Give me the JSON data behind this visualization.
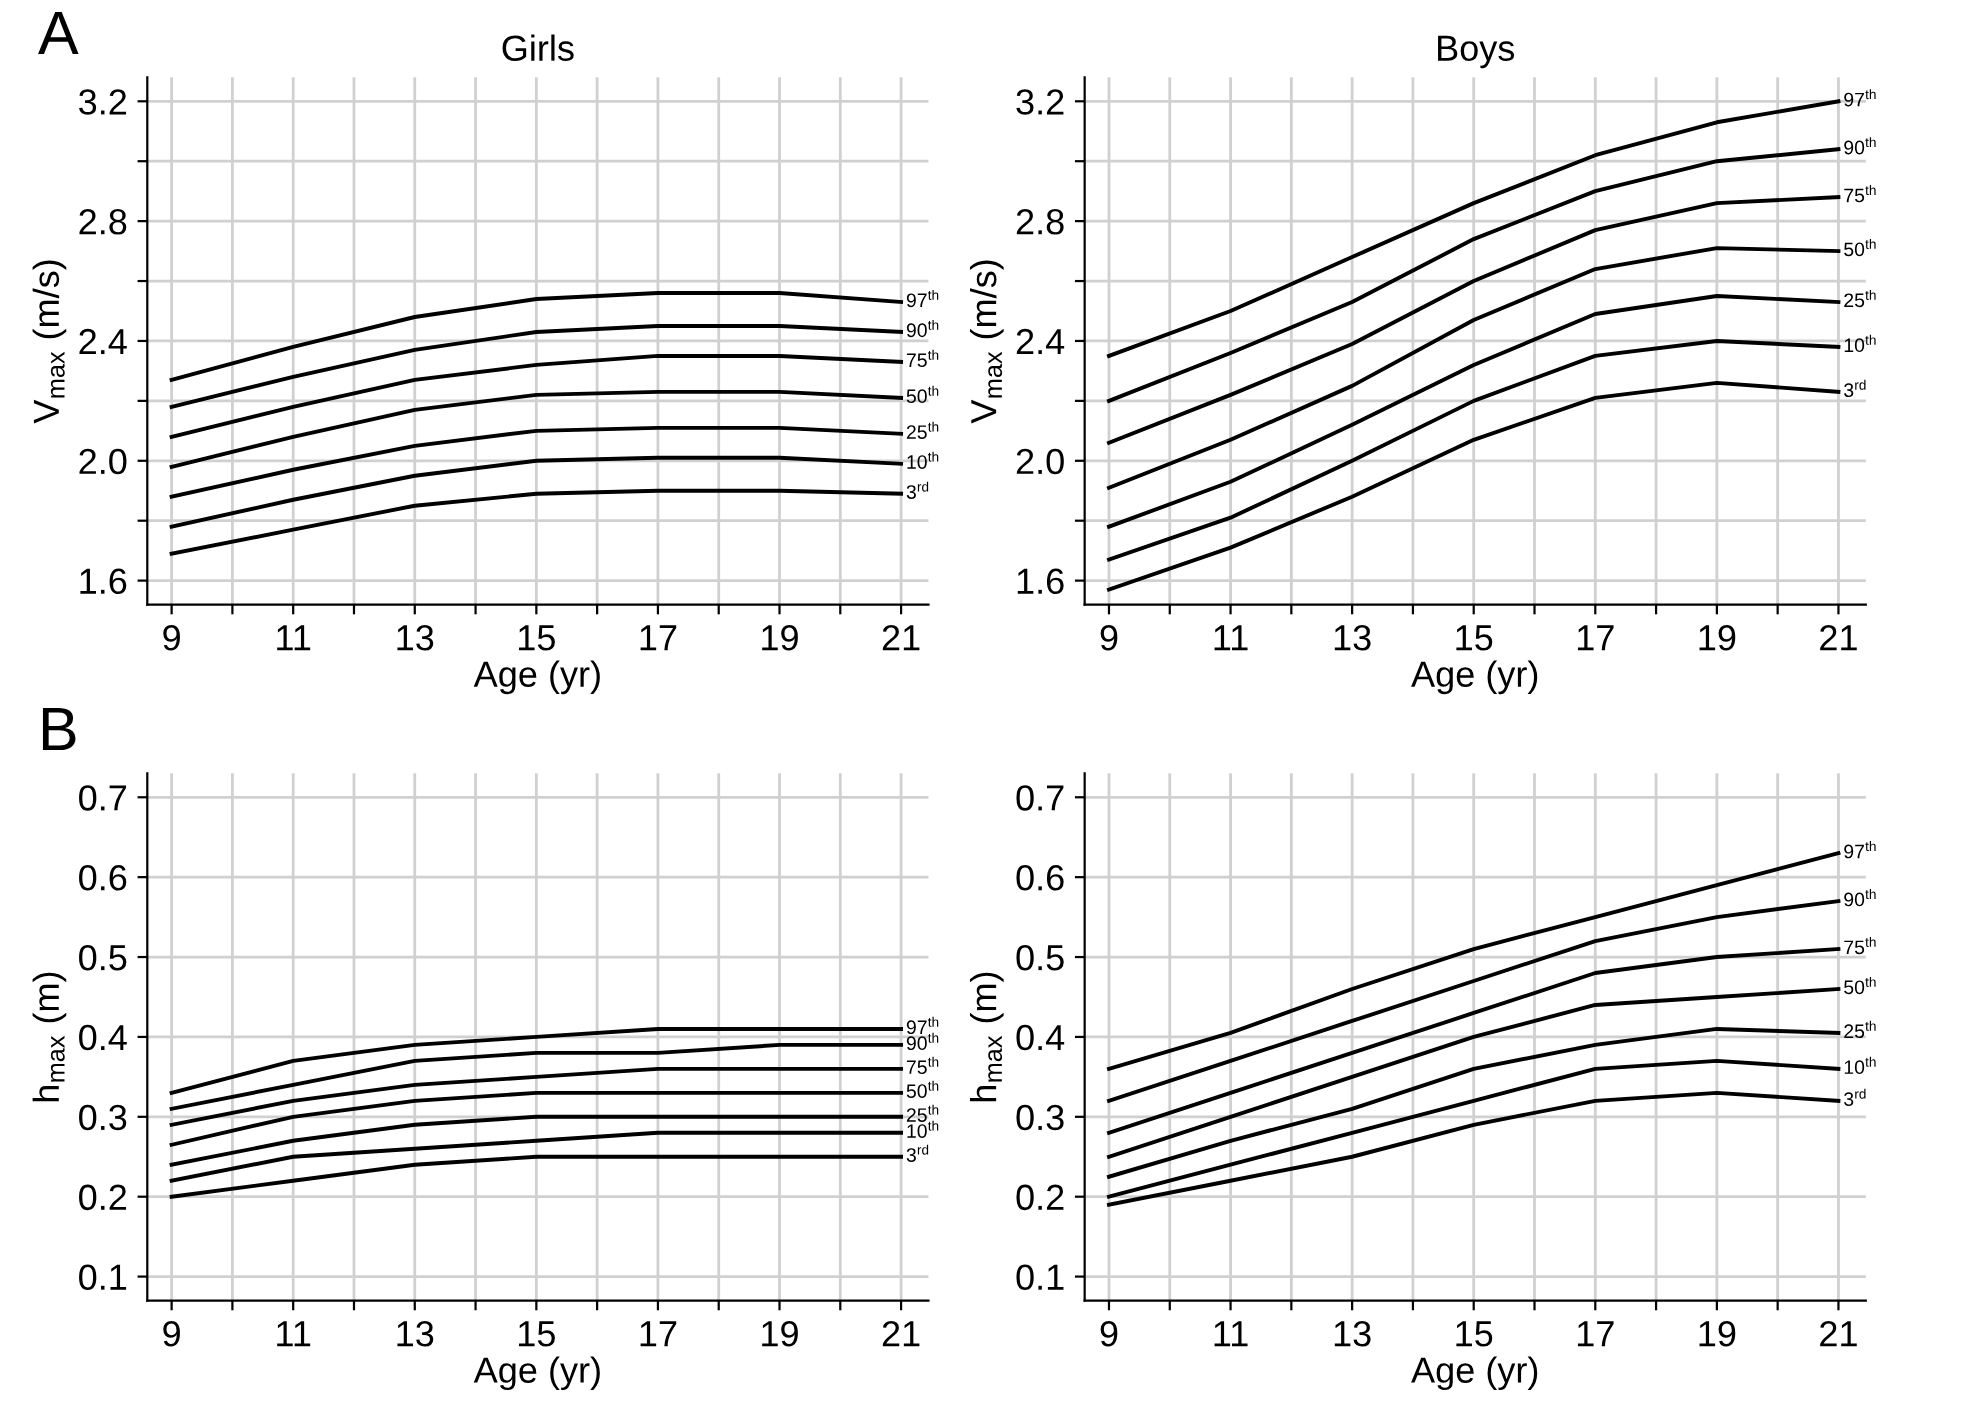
{
  "chart_data": [
    {
      "type": "line",
      "title": "Girls",
      "xlabel": "Age (yr)",
      "ylabel": "V$_{max}$ (m/s)",
      "annotations": [
        "A"
      ],
      "grid": true,
      "x": [
        9,
        11,
        13,
        15,
        17,
        19,
        21
      ],
      "xlim": [
        8.6,
        21.45
      ],
      "ylim": [
        1.52,
        3.28
      ],
      "xticks": [
        9,
        {
          "value": 10,
          "label": null
        },
        11,
        {
          "value": 12,
          "label": null
        },
        13,
        {
          "value": 14,
          "label": null
        },
        15,
        {
          "value": 16,
          "label": null
        },
        17,
        {
          "value": 18,
          "label": null
        },
        19,
        {
          "value": 20,
          "label": null
        },
        21
      ],
      "yticks": [
        1.6,
        {
          "value": 1.8,
          "label": null
        },
        {
          "value": 2.0,
          "label": "2.0"
        },
        {
          "value": 2.2,
          "label": null
        },
        2.4,
        {
          "value": 2.6,
          "label": null
        },
        2.8,
        {
          "value": 3.0,
          "label": null
        },
        3.2
      ],
      "series": [
        {
          "name": "97$^{th}$",
          "color": "#000000",
          "values": [
            2.27,
            2.38,
            2.48,
            2.54,
            2.56,
            2.56,
            2.53
          ]
        },
        {
          "name": "90$^{th}$",
          "color": "#000000",
          "values": [
            2.18,
            2.28,
            2.37,
            2.43,
            2.45,
            2.45,
            2.43
          ]
        },
        {
          "name": "75$^{th}$",
          "color": "#000000",
          "values": [
            2.08,
            2.18,
            2.27,
            2.32,
            2.35,
            2.35,
            2.33
          ]
        },
        {
          "name": "50$^{th}$",
          "color": "#000000",
          "values": [
            1.98,
            2.08,
            2.17,
            2.22,
            2.23,
            2.23,
            2.21
          ]
        },
        {
          "name": "25$^{th}$",
          "color": "#000000",
          "values": [
            1.88,
            1.97,
            2.05,
            2.1,
            2.11,
            2.11,
            2.09
          ]
        },
        {
          "name": "10$^{th}$",
          "color": "#000000",
          "values": [
            1.78,
            1.87,
            1.95,
            2.0,
            2.01,
            2.01,
            1.99
          ]
        },
        {
          "name": "3$^{rd}$",
          "color": "#000000",
          "values": [
            1.69,
            1.77,
            1.85,
            1.89,
            1.9,
            1.9,
            1.89
          ]
        }
      ]
    },
    {
      "type": "line",
      "title": "Boys",
      "xlabel": "Age (yr)",
      "ylabel": "V$_{max}$ (m/s)",
      "grid": true,
      "x": [
        9,
        11,
        13,
        15,
        17,
        19,
        21
      ],
      "xlim": [
        8.6,
        21.45
      ],
      "ylim": [
        1.52,
        3.28
      ],
      "xticks": [
        9,
        {
          "value": 10,
          "label": null
        },
        11,
        {
          "value": 12,
          "label": null
        },
        13,
        {
          "value": 14,
          "label": null
        },
        15,
        {
          "value": 16,
          "label": null
        },
        17,
        {
          "value": 18,
          "label": null
        },
        19,
        {
          "value": 20,
          "label": null
        },
        21
      ],
      "yticks": [
        1.6,
        {
          "value": 1.8,
          "label": null
        },
        {
          "value": 2.0,
          "label": "2.0"
        },
        {
          "value": 2.2,
          "label": null
        },
        2.4,
        {
          "value": 2.6,
          "label": null
        },
        2.8,
        {
          "value": 3.0,
          "label": null
        },
        3.2
      ],
      "series": [
        {
          "name": "97$^{th}$",
          "color": "#000000",
          "values": [
            2.35,
            2.5,
            2.68,
            2.86,
            3.02,
            3.13,
            3.2
          ]
        },
        {
          "name": "90$^{th}$",
          "color": "#000000",
          "values": [
            2.2,
            2.36,
            2.53,
            2.74,
            2.9,
            3.0,
            3.04
          ]
        },
        {
          "name": "75$^{th}$",
          "color": "#000000",
          "values": [
            2.06,
            2.22,
            2.39,
            2.6,
            2.77,
            2.86,
            2.88
          ]
        },
        {
          "name": "50$^{th}$",
          "color": "#000000",
          "values": [
            1.91,
            2.07,
            2.25,
            2.47,
            2.64,
            2.71,
            2.7
          ]
        },
        {
          "name": "25$^{th}$",
          "color": "#000000",
          "values": [
            1.78,
            1.93,
            2.12,
            2.32,
            2.49,
            2.55,
            2.53
          ]
        },
        {
          "name": "10$^{th}$",
          "color": "#000000",
          "values": [
            1.67,
            1.81,
            2.0,
            2.2,
            2.35,
            2.4,
            2.38
          ]
        },
        {
          "name": "3$^{rd}$",
          "color": "#000000",
          "values": [
            1.57,
            1.71,
            1.88,
            2.07,
            2.21,
            2.26,
            2.23
          ]
        }
      ]
    },
    {
      "type": "line",
      "xlabel": "Age (yr)",
      "ylabel": "h$_{max}$ (m)",
      "annotations": [
        "B"
      ],
      "grid": true,
      "x": [
        9,
        11,
        13,
        15,
        17,
        19,
        21
      ],
      "xlim": [
        8.6,
        21.45
      ],
      "ylim": [
        0.07,
        0.73
      ],
      "xticks": [
        9,
        {
          "value": 10,
          "label": null
        },
        11,
        {
          "value": 12,
          "label": null
        },
        13,
        {
          "value": 14,
          "label": null
        },
        15,
        {
          "value": 16,
          "label": null
        },
        17,
        {
          "value": 18,
          "label": null
        },
        19,
        {
          "value": 20,
          "label": null
        },
        21
      ],
      "yticks": [
        0.1,
        0.2,
        0.3,
        0.4,
        0.5,
        0.6,
        0.7
      ],
      "series": [
        {
          "name": "97$^{th}$",
          "color": "#000000",
          "values": [
            0.33,
            0.37,
            0.39,
            0.4,
            0.41,
            0.41,
            0.41
          ]
        },
        {
          "name": "90$^{th}$",
          "color": "#000000",
          "values": [
            0.31,
            0.34,
            0.37,
            0.38,
            0.38,
            0.39,
            0.39
          ]
        },
        {
          "name": "75$^{th}$",
          "color": "#000000",
          "values": [
            0.29,
            0.32,
            0.34,
            0.35,
            0.36,
            0.36,
            0.36
          ]
        },
        {
          "name": "50$^{th}$",
          "color": "#000000",
          "values": [
            0.265,
            0.3,
            0.32,
            0.33,
            0.33,
            0.33,
            0.33
          ]
        },
        {
          "name": "25$^{th}$",
          "color": "#000000",
          "values": [
            0.24,
            0.27,
            0.29,
            0.3,
            0.3,
            0.3,
            0.3
          ]
        },
        {
          "name": "10$^{th}$",
          "color": "#000000",
          "values": [
            0.22,
            0.25,
            0.26,
            0.27,
            0.28,
            0.28,
            0.28
          ]
        },
        {
          "name": "3$^{rd}$",
          "color": "#000000",
          "values": [
            0.2,
            0.22,
            0.24,
            0.25,
            0.25,
            0.25,
            0.25
          ]
        }
      ]
    },
    {
      "type": "line",
      "xlabel": "Age (yr)",
      "ylabel": "h$_{max}$ (m)",
      "grid": true,
      "x": [
        9,
        11,
        13,
        15,
        17,
        19,
        21
      ],
      "xlim": [
        8.6,
        21.45
      ],
      "ylim": [
        0.07,
        0.73
      ],
      "xticks": [
        9,
        {
          "value": 10,
          "label": null
        },
        11,
        {
          "value": 12,
          "label": null
        },
        13,
        {
          "value": 14,
          "label": null
        },
        15,
        {
          "value": 16,
          "label": null
        },
        17,
        {
          "value": 18,
          "label": null
        },
        19,
        {
          "value": 20,
          "label": null
        },
        21
      ],
      "yticks": [
        0.1,
        0.2,
        0.3,
        0.4,
        0.5,
        0.6,
        0.7
      ],
      "series": [
        {
          "name": "97$^{th}$",
          "color": "#000000",
          "values": [
            0.36,
            0.405,
            0.46,
            0.51,
            0.55,
            0.59,
            0.63
          ]
        },
        {
          "name": "90$^{th}$",
          "color": "#000000",
          "values": [
            0.32,
            0.37,
            0.42,
            0.47,
            0.52,
            0.55,
            0.57
          ]
        },
        {
          "name": "75$^{th}$",
          "color": "#000000",
          "values": [
            0.28,
            0.33,
            0.38,
            0.43,
            0.48,
            0.5,
            0.51
          ]
        },
        {
          "name": "50$^{th}$",
          "color": "#000000",
          "values": [
            0.25,
            0.3,
            0.35,
            0.4,
            0.44,
            0.45,
            0.46
          ]
        },
        {
          "name": "25$^{th}$",
          "color": "#000000",
          "values": [
            0.225,
            0.27,
            0.31,
            0.36,
            0.39,
            0.41,
            0.405
          ]
        },
        {
          "name": "10$^{th}$",
          "color": "#000000",
          "values": [
            0.2,
            0.24,
            0.28,
            0.32,
            0.36,
            0.37,
            0.36
          ]
        },
        {
          "name": "3$^{rd}$",
          "color": "#000000",
          "values": [
            0.19,
            0.22,
            0.25,
            0.29,
            0.32,
            0.33,
            0.32
          ]
        }
      ]
    }
  ]
}
